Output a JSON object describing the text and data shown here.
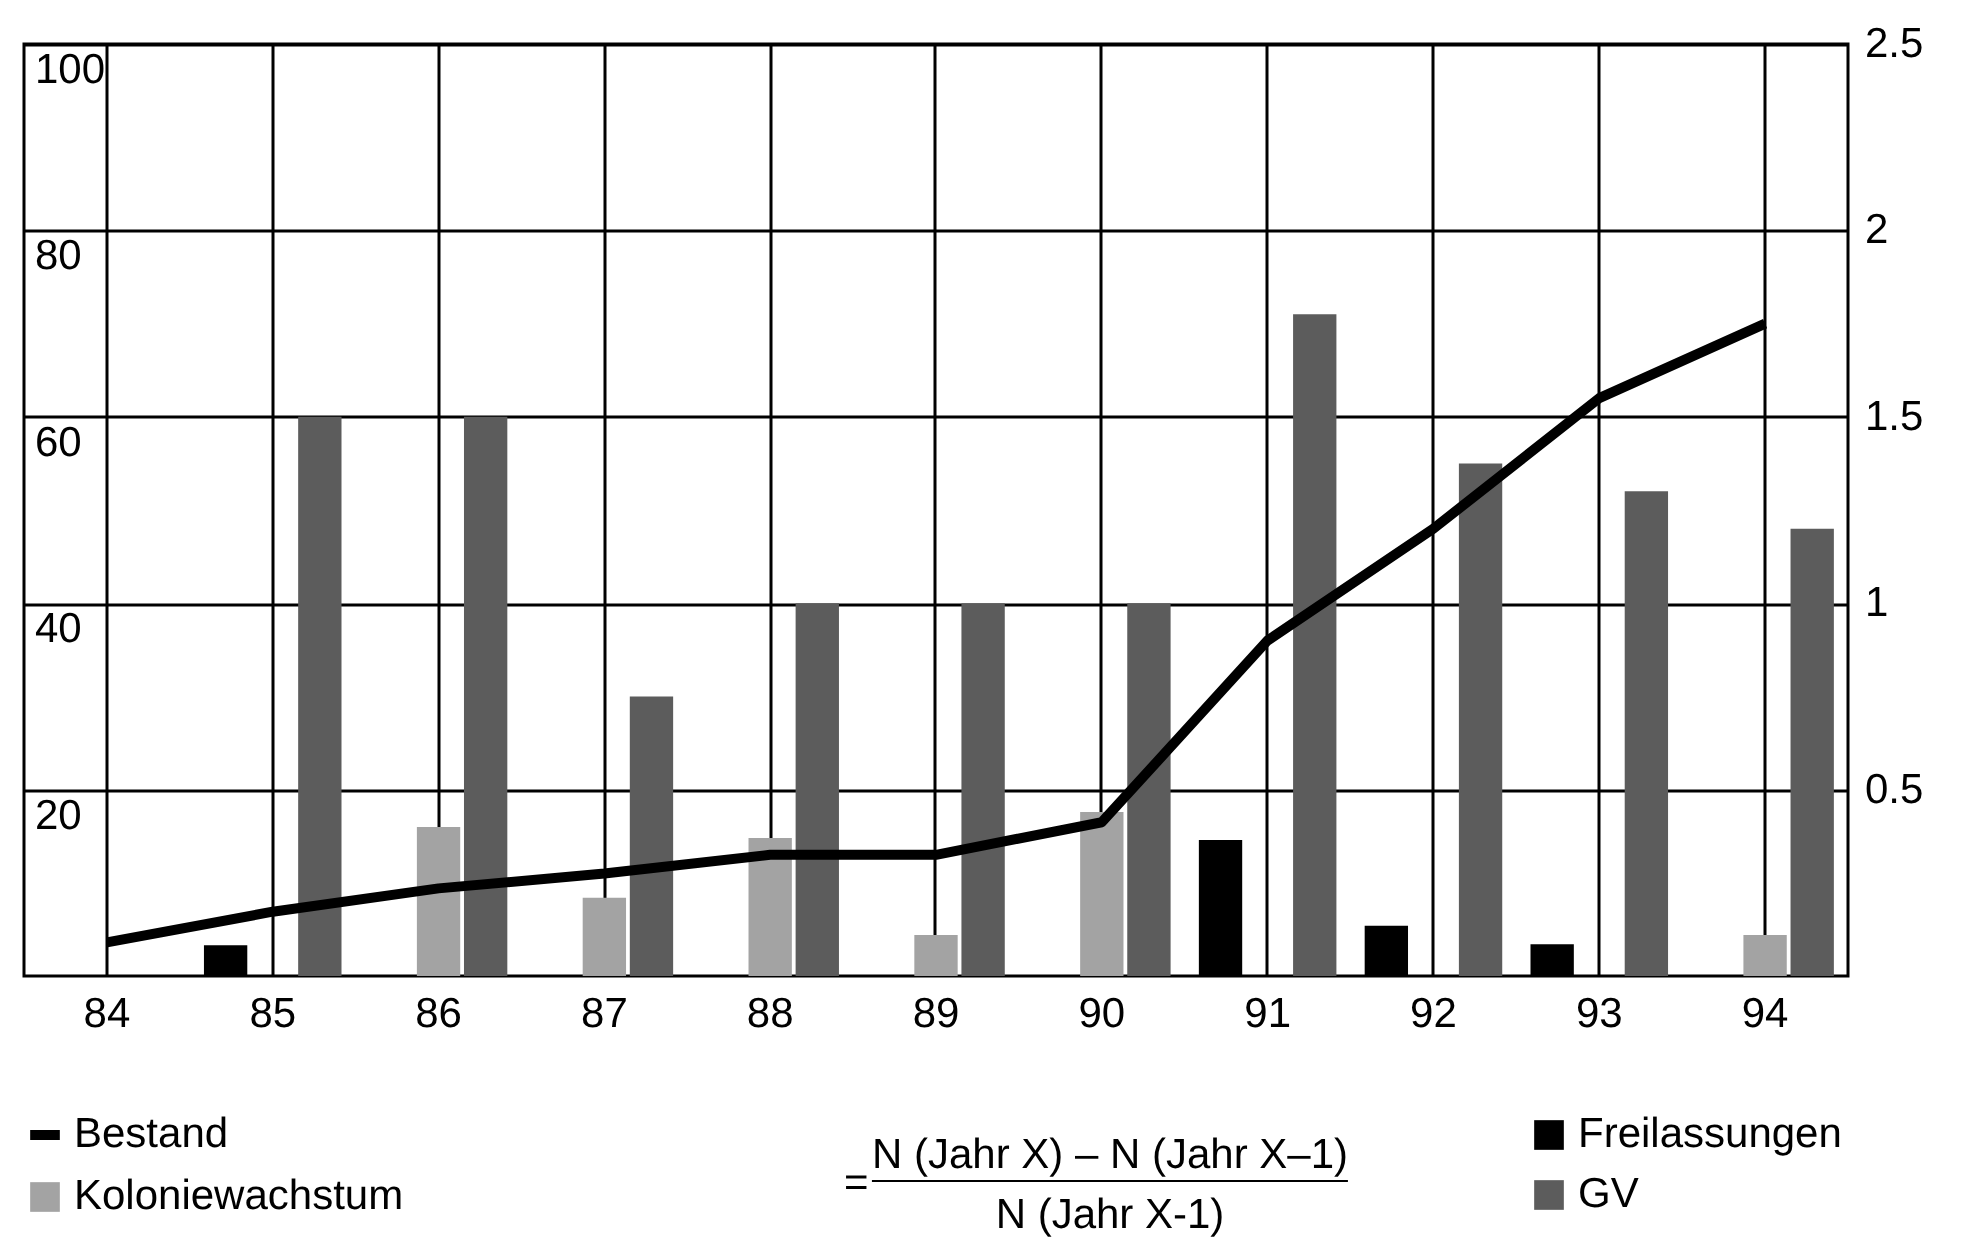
{
  "chart_data": {
    "type": "bar",
    "categories": [
      "84",
      "85",
      "86",
      "87",
      "88",
      "89",
      "90",
      "91",
      "92",
      "93",
      "94"
    ],
    "series": [
      {
        "name": "Freilassungen",
        "color": "#000000",
        "values": [
          null,
          3.3,
          null,
          null,
          null,
          null,
          null,
          14.6,
          5.4,
          3.4,
          null
        ]
      },
      {
        "name": "Koloniewachstum",
        "color": "#a3a3a3",
        "axis": "y2",
        "values": [
          null,
          null,
          0.4,
          0.21,
          0.37,
          0.11,
          0.44,
          null,
          null,
          null,
          0.11
        ]
      },
      {
        "name": "GV",
        "color": "#5c5c5c",
        "values": [
          null,
          60,
          60,
          30,
          40,
          40,
          40,
          71,
          55,
          52,
          48
        ]
      },
      {
        "name": "Bestand",
        "type": "line",
        "color": "#000000",
        "values": [
          3.6,
          6.9,
          9.4,
          11,
          13,
          13,
          16.5,
          36,
          48,
          62,
          70
        ]
      }
    ],
    "ylim": [
      0,
      100
    ],
    "yticks": [
      20,
      40,
      60,
      80,
      100
    ],
    "y2lim": [
      0,
      2.5
    ],
    "y2ticks": [
      0.5,
      1,
      1.5,
      2,
      2.5
    ],
    "grid": true,
    "legend": "bottom",
    "annotations": [
      "=",
      "N (Jahr X) – N (Jahr X–1)",
      "N (Jahr X-1)"
    ]
  }
}
